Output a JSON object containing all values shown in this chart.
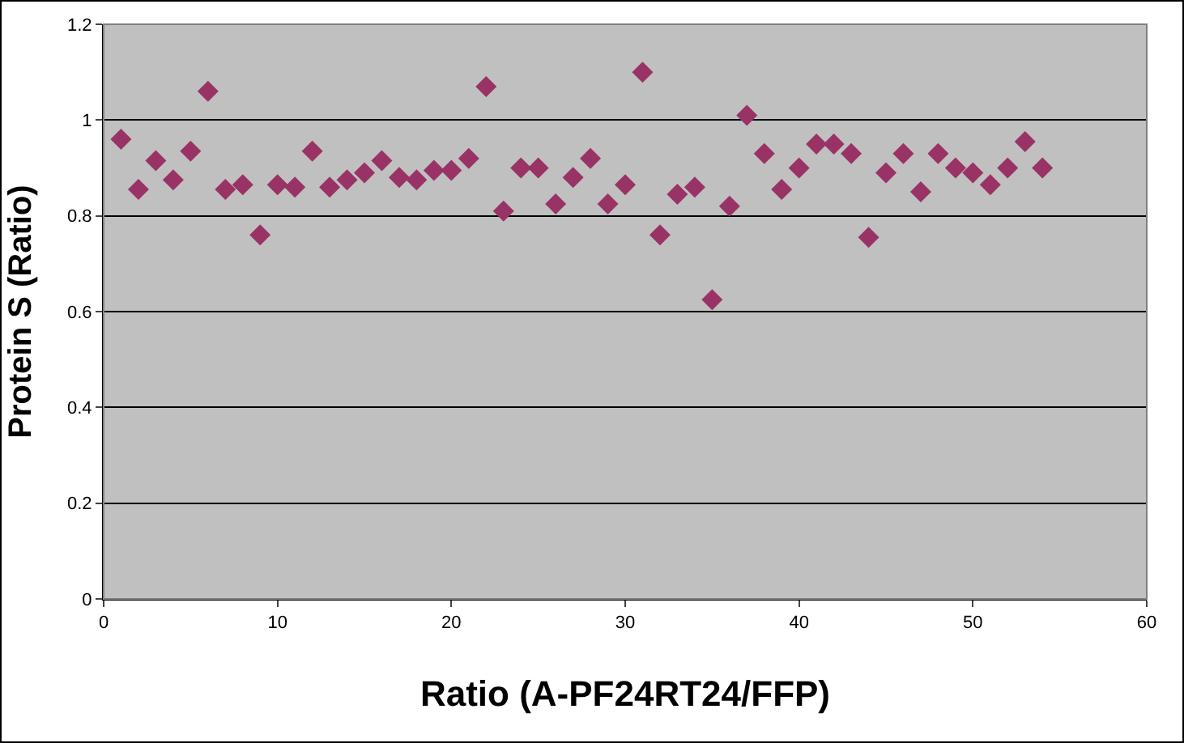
{
  "chart_data": {
    "type": "scatter",
    "xlabel": "Ratio (A-PF24RT24/FFP)",
    "ylabel": "Protein S (Ratio)",
    "x": [
      1,
      2,
      3,
      4,
      5,
      6,
      7,
      8,
      9,
      10,
      11,
      12,
      13,
      14,
      15,
      16,
      17,
      18,
      19,
      20,
      21,
      22,
      23,
      24,
      25,
      26,
      27,
      28,
      29,
      30,
      31,
      32,
      33,
      34,
      35,
      36,
      37,
      38,
      39,
      40,
      41,
      42,
      43,
      44,
      45,
      46,
      47,
      48,
      49,
      50,
      51,
      52,
      53,
      54
    ],
    "values": [
      0.96,
      0.855,
      0.915,
      0.875,
      0.935,
      1.06,
      0.855,
      0.865,
      0.76,
      0.865,
      0.86,
      0.935,
      0.86,
      0.875,
      0.89,
      0.915,
      0.88,
      0.875,
      0.895,
      0.895,
      0.92,
      1.07,
      0.81,
      0.9,
      0.9,
      0.825,
      0.88,
      0.92,
      0.825,
      0.865,
      1.1,
      0.76,
      0.845,
      0.86,
      0.625,
      0.82,
      1.01,
      0.93,
      0.855,
      0.9,
      0.95,
      0.95,
      0.93,
      0.755,
      0.89,
      0.93,
      0.85,
      0.93,
      0.9,
      0.89,
      0.865,
      0.9,
      0.955,
      0.9
    ],
    "color": "#993366",
    "marker": "diamond",
    "grid": "y",
    "legend": false,
    "xlim": [
      0,
      60
    ],
    "xticks": [
      0,
      10,
      20,
      30,
      40,
      50,
      60
    ],
    "ylim": [
      0,
      1.2
    ],
    "yticks": [
      0,
      0.2,
      0.4,
      0.6,
      0.8,
      1,
      1.2
    ]
  }
}
